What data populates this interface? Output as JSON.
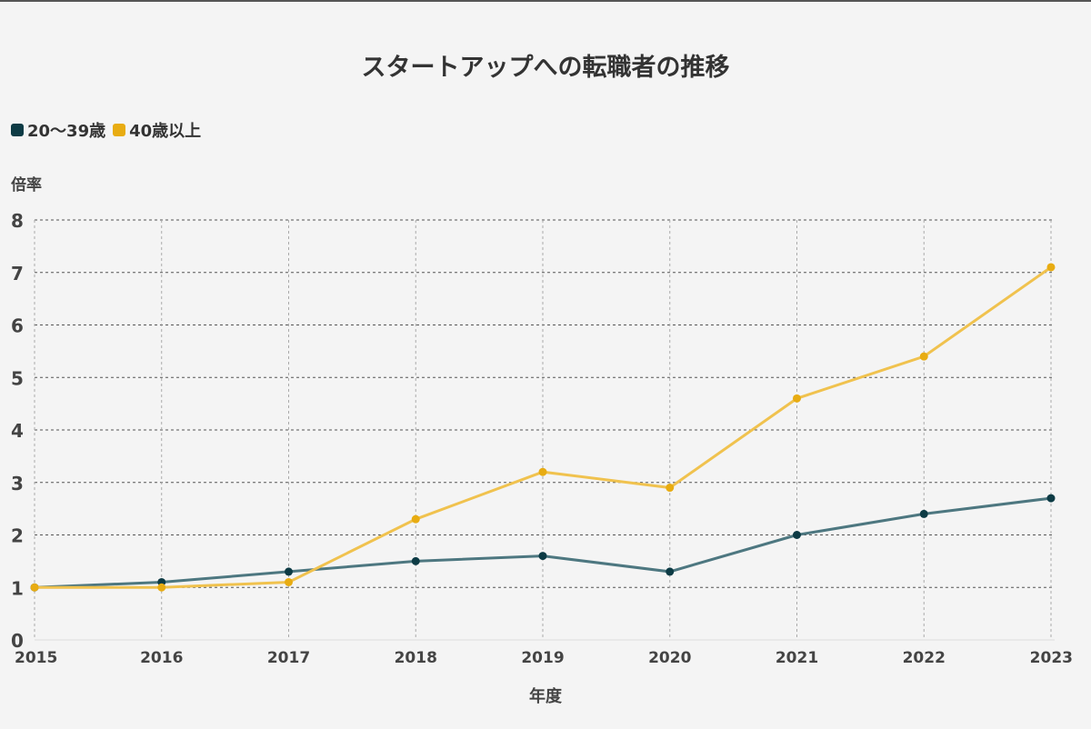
{
  "chart_data": {
    "type": "line",
    "title": "スタートアップへの転職者の推移",
    "xlabel": "年度",
    "ylabel": "倍率",
    "x": [
      "2015",
      "2016",
      "2017",
      "2018",
      "2019",
      "2020",
      "2021",
      "2022",
      "2023"
    ],
    "ylim": [
      0,
      8
    ],
    "yticks": [
      0,
      1,
      2,
      3,
      4,
      5,
      6,
      7,
      8
    ],
    "grid": true,
    "legend_position": "top-left",
    "series": [
      {
        "name": "20〜39歳",
        "color": "#0d3b45",
        "line_color": "#4d7780",
        "values": [
          1.0,
          1.1,
          1.3,
          1.5,
          1.6,
          1.3,
          2.0,
          2.4,
          2.7
        ]
      },
      {
        "name": "40歳以上",
        "color": "#e8ac12",
        "line_color": "#f0c24e",
        "values": [
          1.0,
          1.0,
          1.1,
          2.3,
          3.2,
          2.9,
          4.6,
          5.4,
          7.1
        ]
      }
    ]
  }
}
